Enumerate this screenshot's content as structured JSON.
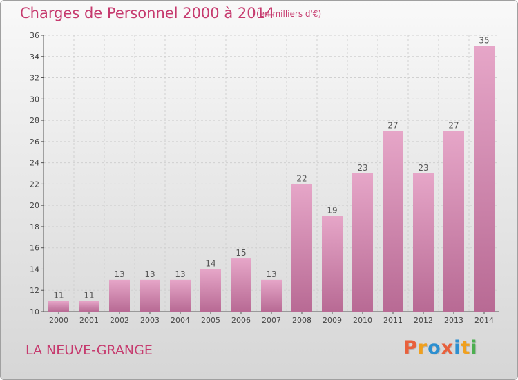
{
  "header": {
    "title": "Charges de Personnel 2000 à 2014",
    "subtitle": "(en milliers d'€)"
  },
  "footer": {
    "commune": "LA NEUVE-GRANGE",
    "logo": "Proxiti",
    "logo_colors": [
      "#e8603c",
      "#f0a01e",
      "#2c8fd0",
      "#e8603c",
      "#2c8fd0",
      "#f0a01e",
      "#4caf50"
    ]
  },
  "chart_data": {
    "type": "bar",
    "title": "Charges de Personnel 2000 à 2014",
    "subtitle": "(en milliers d'€)",
    "xlabel": "",
    "ylabel": "",
    "categories": [
      "2000",
      "2001",
      "2002",
      "2003",
      "2004",
      "2005",
      "2006",
      "2007",
      "2008",
      "2009",
      "2010",
      "2011",
      "2012",
      "2013",
      "2014"
    ],
    "values": [
      11,
      11,
      13,
      13,
      13,
      14,
      15,
      13,
      22,
      19,
      23,
      27,
      23,
      27,
      35
    ],
    "ylim": [
      10,
      36
    ],
    "yticks": [
      10,
      12,
      14,
      16,
      18,
      20,
      22,
      24,
      26,
      28,
      30,
      32,
      34,
      36
    ],
    "grid": true,
    "bar_color_top": "#e6a6c8",
    "bar_color_bottom": "#b86a94",
    "label_color": "#555555"
  }
}
